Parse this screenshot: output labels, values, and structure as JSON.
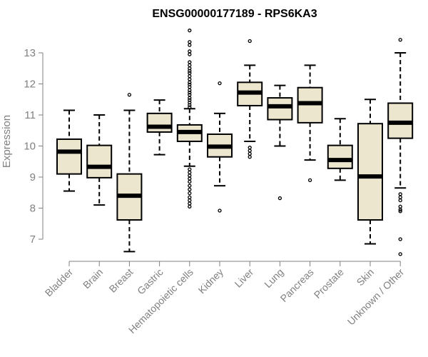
{
  "chart_data": {
    "type": "boxplot",
    "title": "ENSG00000177189 - RPS6KA3",
    "xlabel": "",
    "ylabel": "Expression",
    "ylim": [
      6.3,
      14.1
    ],
    "yticks": [
      7,
      8,
      9,
      10,
      11,
      12,
      13
    ],
    "grid": false,
    "box_color": "#ede6cf",
    "line_color": "#000000",
    "axis_color": "#808080",
    "categories": [
      "Bladder",
      "Brain",
      "Breast",
      "Gastric",
      "Hematopoietic cells",
      "Kidney",
      "Liver",
      "Lung",
      "Pancreas",
      "Prostate",
      "Skin",
      "Unknown / Other"
    ],
    "boxes": [
      {
        "whisker_low": 8.55,
        "q1": 9.1,
        "median": 9.82,
        "q3": 10.22,
        "whisker_high": 11.15,
        "outliers": []
      },
      {
        "whisker_low": 8.1,
        "q1": 8.98,
        "median": 9.33,
        "q3": 10.02,
        "whisker_high": 11.0,
        "outliers": []
      },
      {
        "whisker_low": 6.6,
        "q1": 7.62,
        "median": 8.4,
        "q3": 9.1,
        "whisker_high": 11.15,
        "outliers": [
          11.65
        ]
      },
      {
        "whisker_low": 9.72,
        "q1": 10.45,
        "median": 10.62,
        "q3": 11.05,
        "whisker_high": 11.48,
        "outliers": []
      },
      {
        "whisker_low": 9.35,
        "q1": 10.15,
        "median": 10.45,
        "q3": 10.68,
        "whisker_high": 11.2,
        "outliers": [
          13.72,
          13.35,
          13.25,
          13.05,
          12.95,
          12.7,
          12.6,
          12.5,
          12.42,
          12.35,
          12.25,
          12.15,
          12.05,
          11.98,
          11.9,
          11.8,
          11.72,
          11.65,
          11.55,
          11.48,
          11.4,
          11.32,
          11.25,
          9.25,
          9.15,
          9.05,
          8.95,
          8.85,
          8.72,
          8.6,
          8.48,
          8.35,
          8.25,
          8.15,
          8.05
        ]
      },
      {
        "whisker_low": 8.72,
        "q1": 9.65,
        "median": 9.98,
        "q3": 10.38,
        "whisker_high": 11.05,
        "outliers": [
          12.02,
          7.92
        ]
      },
      {
        "whisker_low": 10.15,
        "q1": 11.3,
        "median": 11.72,
        "q3": 12.05,
        "whisker_high": 12.6,
        "outliers": [
          13.38,
          9.95,
          9.85,
          9.75,
          9.65
        ]
      },
      {
        "whisker_low": 10.0,
        "q1": 10.85,
        "median": 11.28,
        "q3": 11.55,
        "whisker_high": 11.95,
        "outliers": [
          8.32
        ]
      },
      {
        "whisker_low": 9.55,
        "q1": 10.75,
        "median": 11.38,
        "q3": 11.88,
        "whisker_high": 12.6,
        "outliers": [
          8.9
        ]
      },
      {
        "whisker_low": 8.9,
        "q1": 9.28,
        "median": 9.55,
        "q3": 10.02,
        "whisker_high": 10.88,
        "outliers": []
      },
      {
        "whisker_low": 6.85,
        "q1": 7.62,
        "median": 9.02,
        "q3": 10.72,
        "whisker_high": 11.5,
        "outliers": []
      },
      {
        "whisker_low": 8.65,
        "q1": 10.25,
        "median": 10.75,
        "q3": 11.38,
        "whisker_high": 13.0,
        "outliers": [
          13.42,
          8.45,
          8.35,
          8.25,
          8.05,
          7.95,
          7.9,
          7.0,
          6.52
        ]
      }
    ]
  }
}
